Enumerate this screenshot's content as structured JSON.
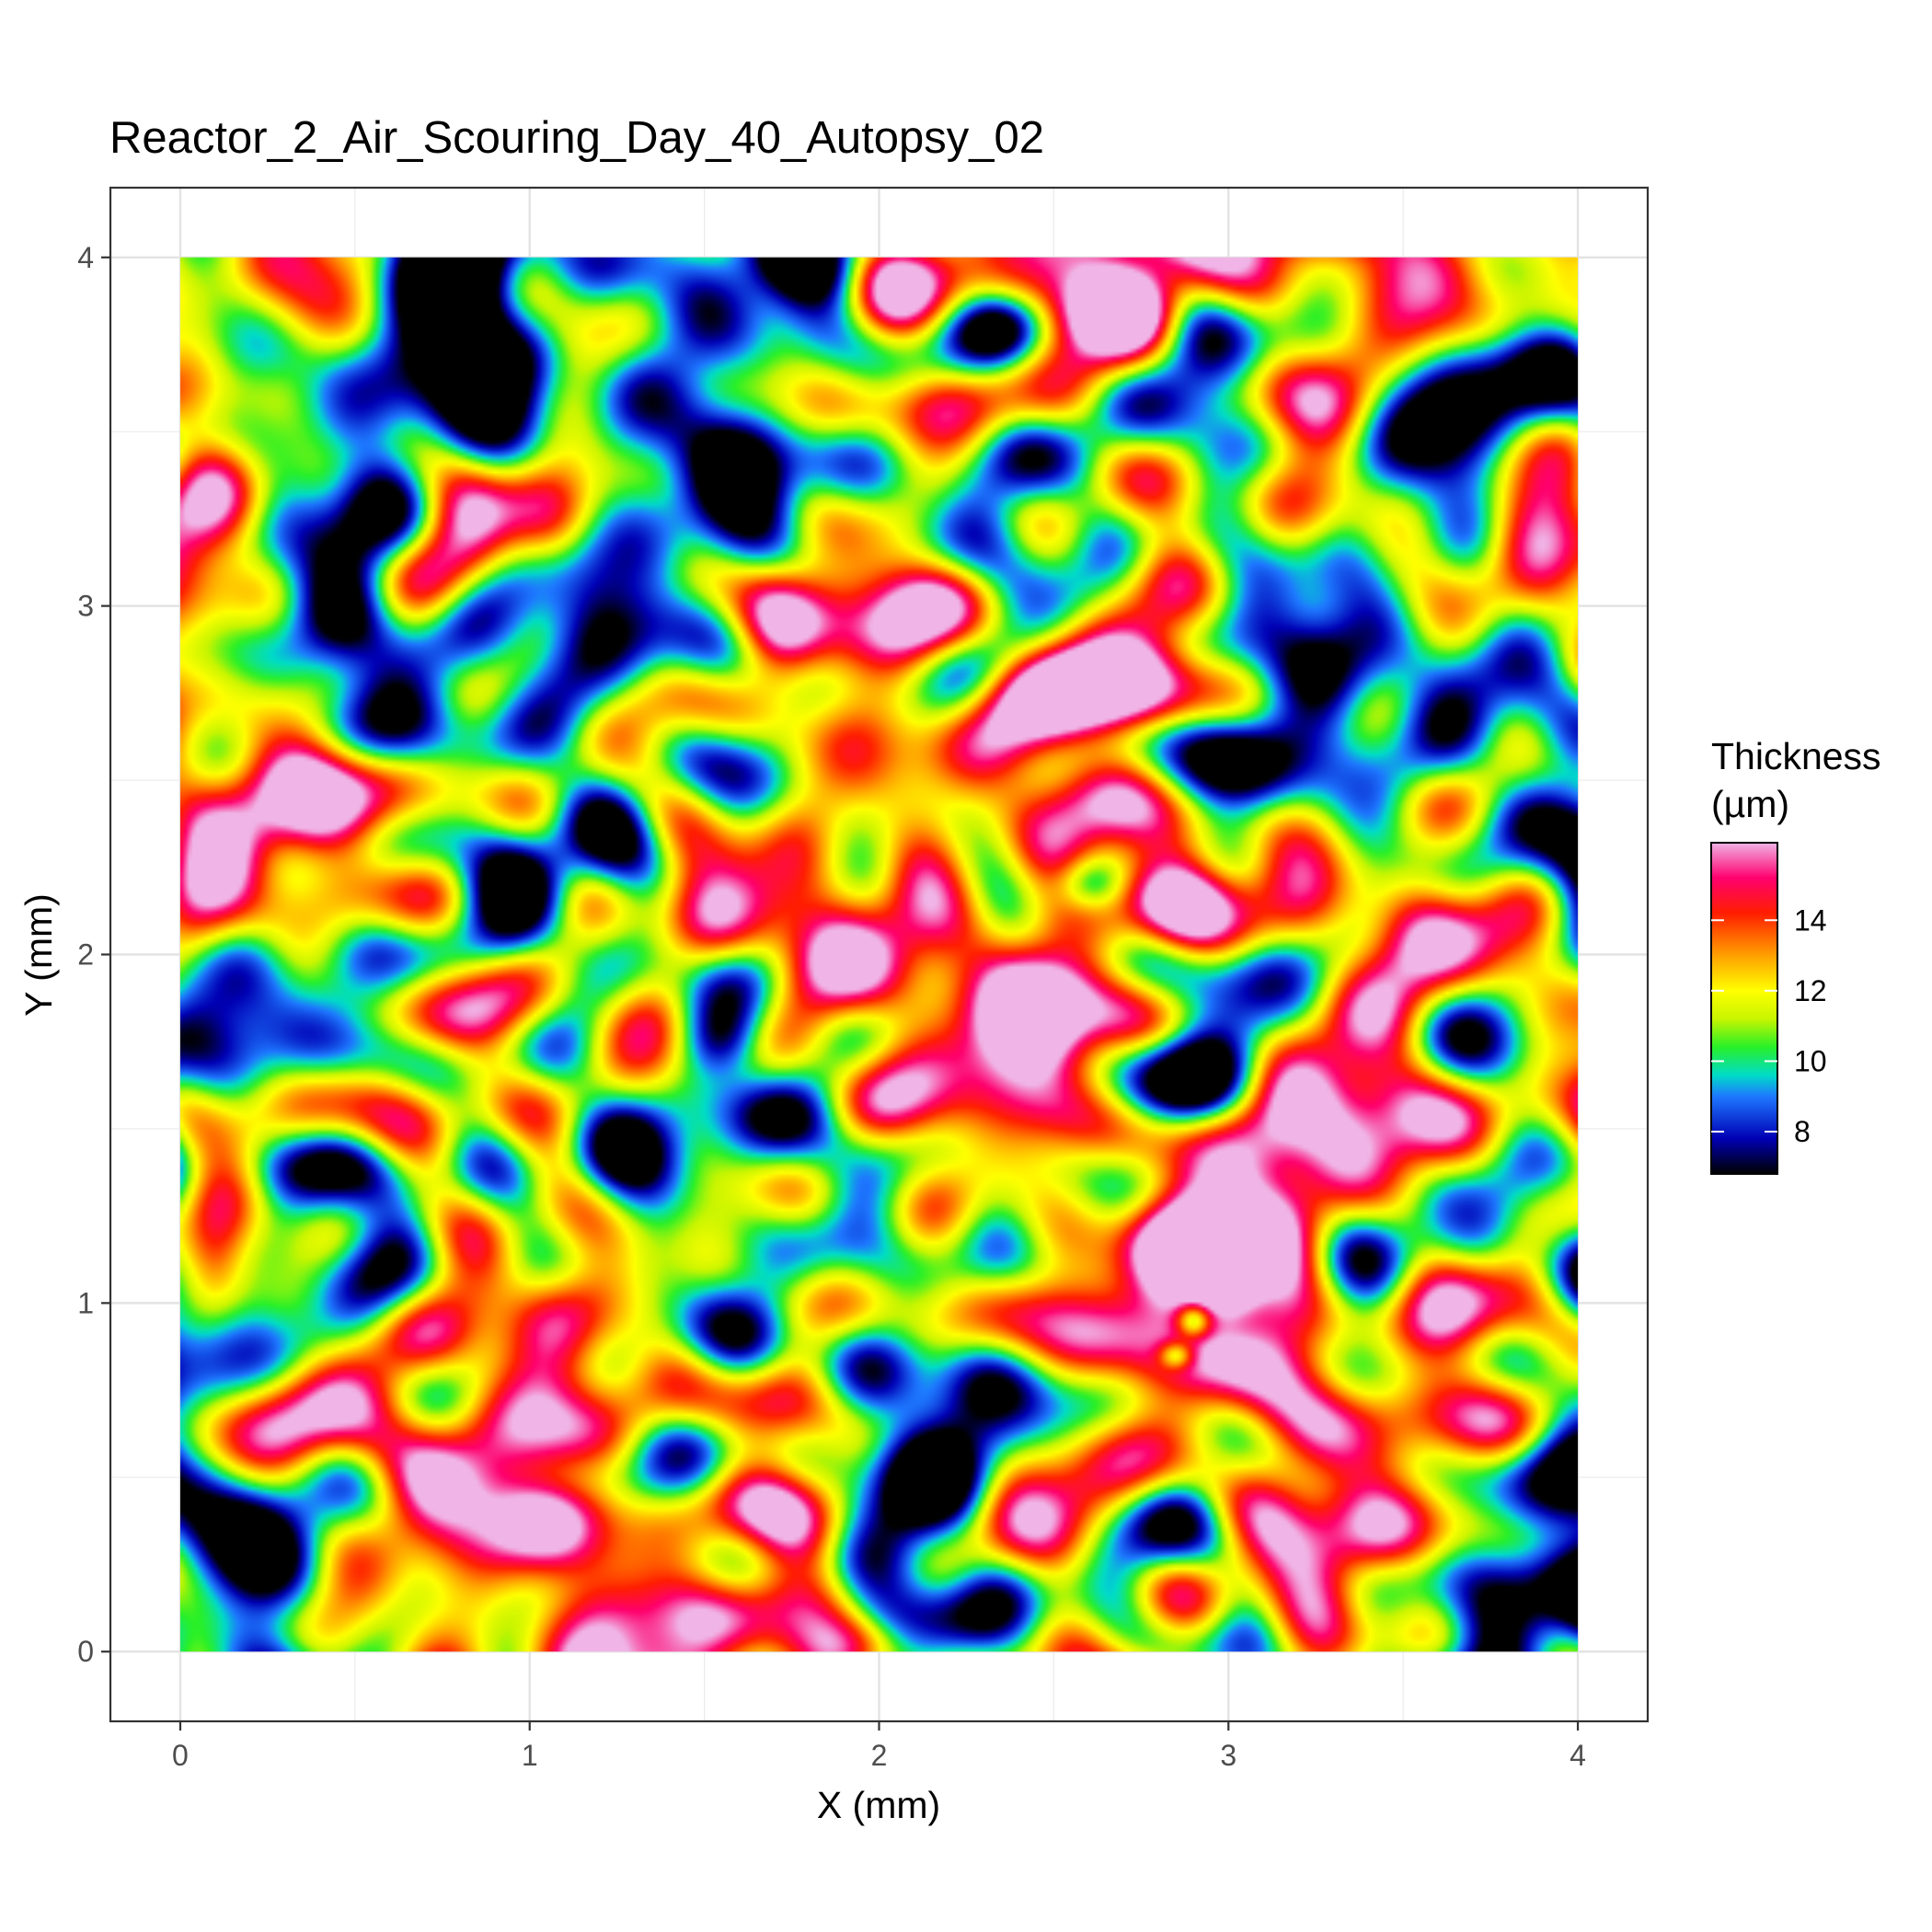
{
  "chart_data": {
    "type": "heatmap",
    "title": "Reactor_2_Air_Scouring_Day_40_Autopsy_02",
    "xlabel": "X (mm)",
    "ylabel": "Y (mm)",
    "xlim": [
      -0.2,
      4.2
    ],
    "ylim": [
      -0.2,
      4.2
    ],
    "x_ticks": [
      0,
      1,
      2,
      3,
      4
    ],
    "y_ticks": [
      0,
      1,
      2,
      3,
      4
    ],
    "x_tick_labels": [
      "0",
      "1",
      "2",
      "3",
      "4"
    ],
    "y_tick_labels": [
      "0",
      "1",
      "2",
      "3",
      "4"
    ],
    "grid": true,
    "domain": {
      "x": [
        0,
        4
      ],
      "y": [
        0,
        4
      ]
    },
    "legend": {
      "title_lines": [
        "Thickness",
        "(µm)"
      ],
      "placement": "right",
      "range": [
        6.8,
        16.2
      ],
      "breaks": [
        8,
        10,
        12,
        14
      ],
      "break_labels": [
        "8",
        "10",
        "12",
        "14"
      ]
    },
    "colormap": [
      {
        "value": 6.8,
        "color": "#000000"
      },
      {
        "value": 7.8,
        "color": "#0000b4"
      },
      {
        "value": 9.0,
        "color": "#1e78ff"
      },
      {
        "value": 9.6,
        "color": "#00dcc8"
      },
      {
        "value": 10.4,
        "color": "#28f028"
      },
      {
        "value": 11.2,
        "color": "#c8f500"
      },
      {
        "value": 12.0,
        "color": "#ffff00"
      },
      {
        "value": 13.0,
        "color": "#ffa000"
      },
      {
        "value": 14.2,
        "color": "#ff1e00"
      },
      {
        "value": 15.2,
        "color": "#ff006e"
      },
      {
        "value": 16.2,
        "color": "#f0b4e6"
      }
    ],
    "baseline_um": 12.0,
    "features": [
      {
        "x": 0.4,
        "y": 3.55,
        "rx": 0.35,
        "ry": 0.28,
        "dv": -5.2
      },
      {
        "x": 0.2,
        "y": 3.7,
        "rx": 0.15,
        "ry": 0.12,
        "dv": -2.0
      },
      {
        "x": 0.3,
        "y": 1.4,
        "rx": 0.3,
        "ry": 0.12,
        "dv": -3.0
      },
      {
        "x": 1.3,
        "y": 1.4,
        "rx": 0.25,
        "ry": 0.18,
        "dv": -2.8
      },
      {
        "x": 1.55,
        "y": 1.75,
        "rx": 0.12,
        "ry": 0.1,
        "dv": -3.0
      },
      {
        "x": 2.4,
        "y": 0.1,
        "rx": 0.3,
        "ry": 0.18,
        "dv": -5.0
      },
      {
        "x": 2.0,
        "y": 0.1,
        "rx": 0.25,
        "ry": 0.1,
        "dv": -3.5
      },
      {
        "x": 3.8,
        "y": 0.1,
        "rx": 0.22,
        "ry": 0.15,
        "dv": -4.5
      },
      {
        "x": 3.4,
        "y": 0.2,
        "rx": 0.2,
        "ry": 0.15,
        "dv": -2.2
      },
      {
        "x": 1.1,
        "y": 0.5,
        "rx": 0.18,
        "ry": 0.1,
        "dv": -2.5
      },
      {
        "x": 2.9,
        "y": 0.95,
        "rx": 0.05,
        "ry": 0.05,
        "dv": -4.5
      },
      {
        "x": 2.85,
        "y": 0.85,
        "rx": 0.05,
        "ry": 0.04,
        "dv": -4.0
      },
      {
        "x": 2.6,
        "y": 2.2,
        "rx": 0.1,
        "ry": 0.08,
        "dv": -3.5
      },
      {
        "x": 2.8,
        "y": 3.6,
        "rx": 0.5,
        "ry": 0.3,
        "dv": -1.5
      },
      {
        "x": 3.6,
        "y": 3.5,
        "rx": 0.4,
        "ry": 0.3,
        "dv": -2.0
      },
      {
        "x": 2.35,
        "y": 3.8,
        "rx": 0.12,
        "ry": 0.1,
        "dv": -3.5
      },
      {
        "x": 2.0,
        "y": 3.0,
        "rx": 0.3,
        "ry": 0.4,
        "dv": -1.2
      },
      {
        "x": 3.0,
        "y": 2.0,
        "rx": 0.3,
        "ry": 0.3,
        "dv": -1.2
      },
      {
        "x": 1.7,
        "y": 1.0,
        "rx": 0.4,
        "ry": 0.3,
        "dv": -1.4
      },
      {
        "x": 2.2,
        "y": 0.6,
        "rx": 0.35,
        "ry": 0.25,
        "dv": -1.6
      },
      {
        "x": 2.55,
        "y": 2.75,
        "rx": 0.3,
        "ry": 0.12,
        "dv": 3.8
      },
      {
        "x": 3.45,
        "y": 1.45,
        "rx": 0.3,
        "ry": 0.15,
        "dv": 3.6
      },
      {
        "x": 2.1,
        "y": 2.1,
        "rx": 0.35,
        "ry": 0.15,
        "dv": 2.8
      },
      {
        "x": 1.05,
        "y": 3.25,
        "rx": 0.12,
        "ry": 0.15,
        "dv": 3.4
      },
      {
        "x": 0.4,
        "y": 2.1,
        "rx": 0.35,
        "ry": 0.4,
        "dv": 1.6
      },
      {
        "x": 0.5,
        "y": 0.6,
        "rx": 0.2,
        "ry": 0.3,
        "dv": 1.8
      },
      {
        "x": 0.1,
        "y": 1.1,
        "rx": 0.1,
        "ry": 0.15,
        "dv": 2.8
      },
      {
        "x": 1.7,
        "y": 2.9,
        "rx": 0.12,
        "ry": 0.2,
        "dv": 2.6
      },
      {
        "x": 3.0,
        "y": 1.05,
        "rx": 0.08,
        "ry": 0.08,
        "dv": 2.8
      },
      {
        "x": 3.7,
        "y": 2.2,
        "rx": 0.3,
        "ry": 0.3,
        "dv": 1.2
      },
      {
        "x": 3.3,
        "y": 0.9,
        "rx": 0.3,
        "ry": 0.2,
        "dv": 1.0
      },
      {
        "x": 2.7,
        "y": 3.85,
        "rx": 0.15,
        "ry": 0.1,
        "dv": 2.4
      },
      {
        "x": 0.8,
        "y": 3.1,
        "rx": 0.3,
        "ry": 0.15,
        "dv": 2.0
      }
    ]
  }
}
